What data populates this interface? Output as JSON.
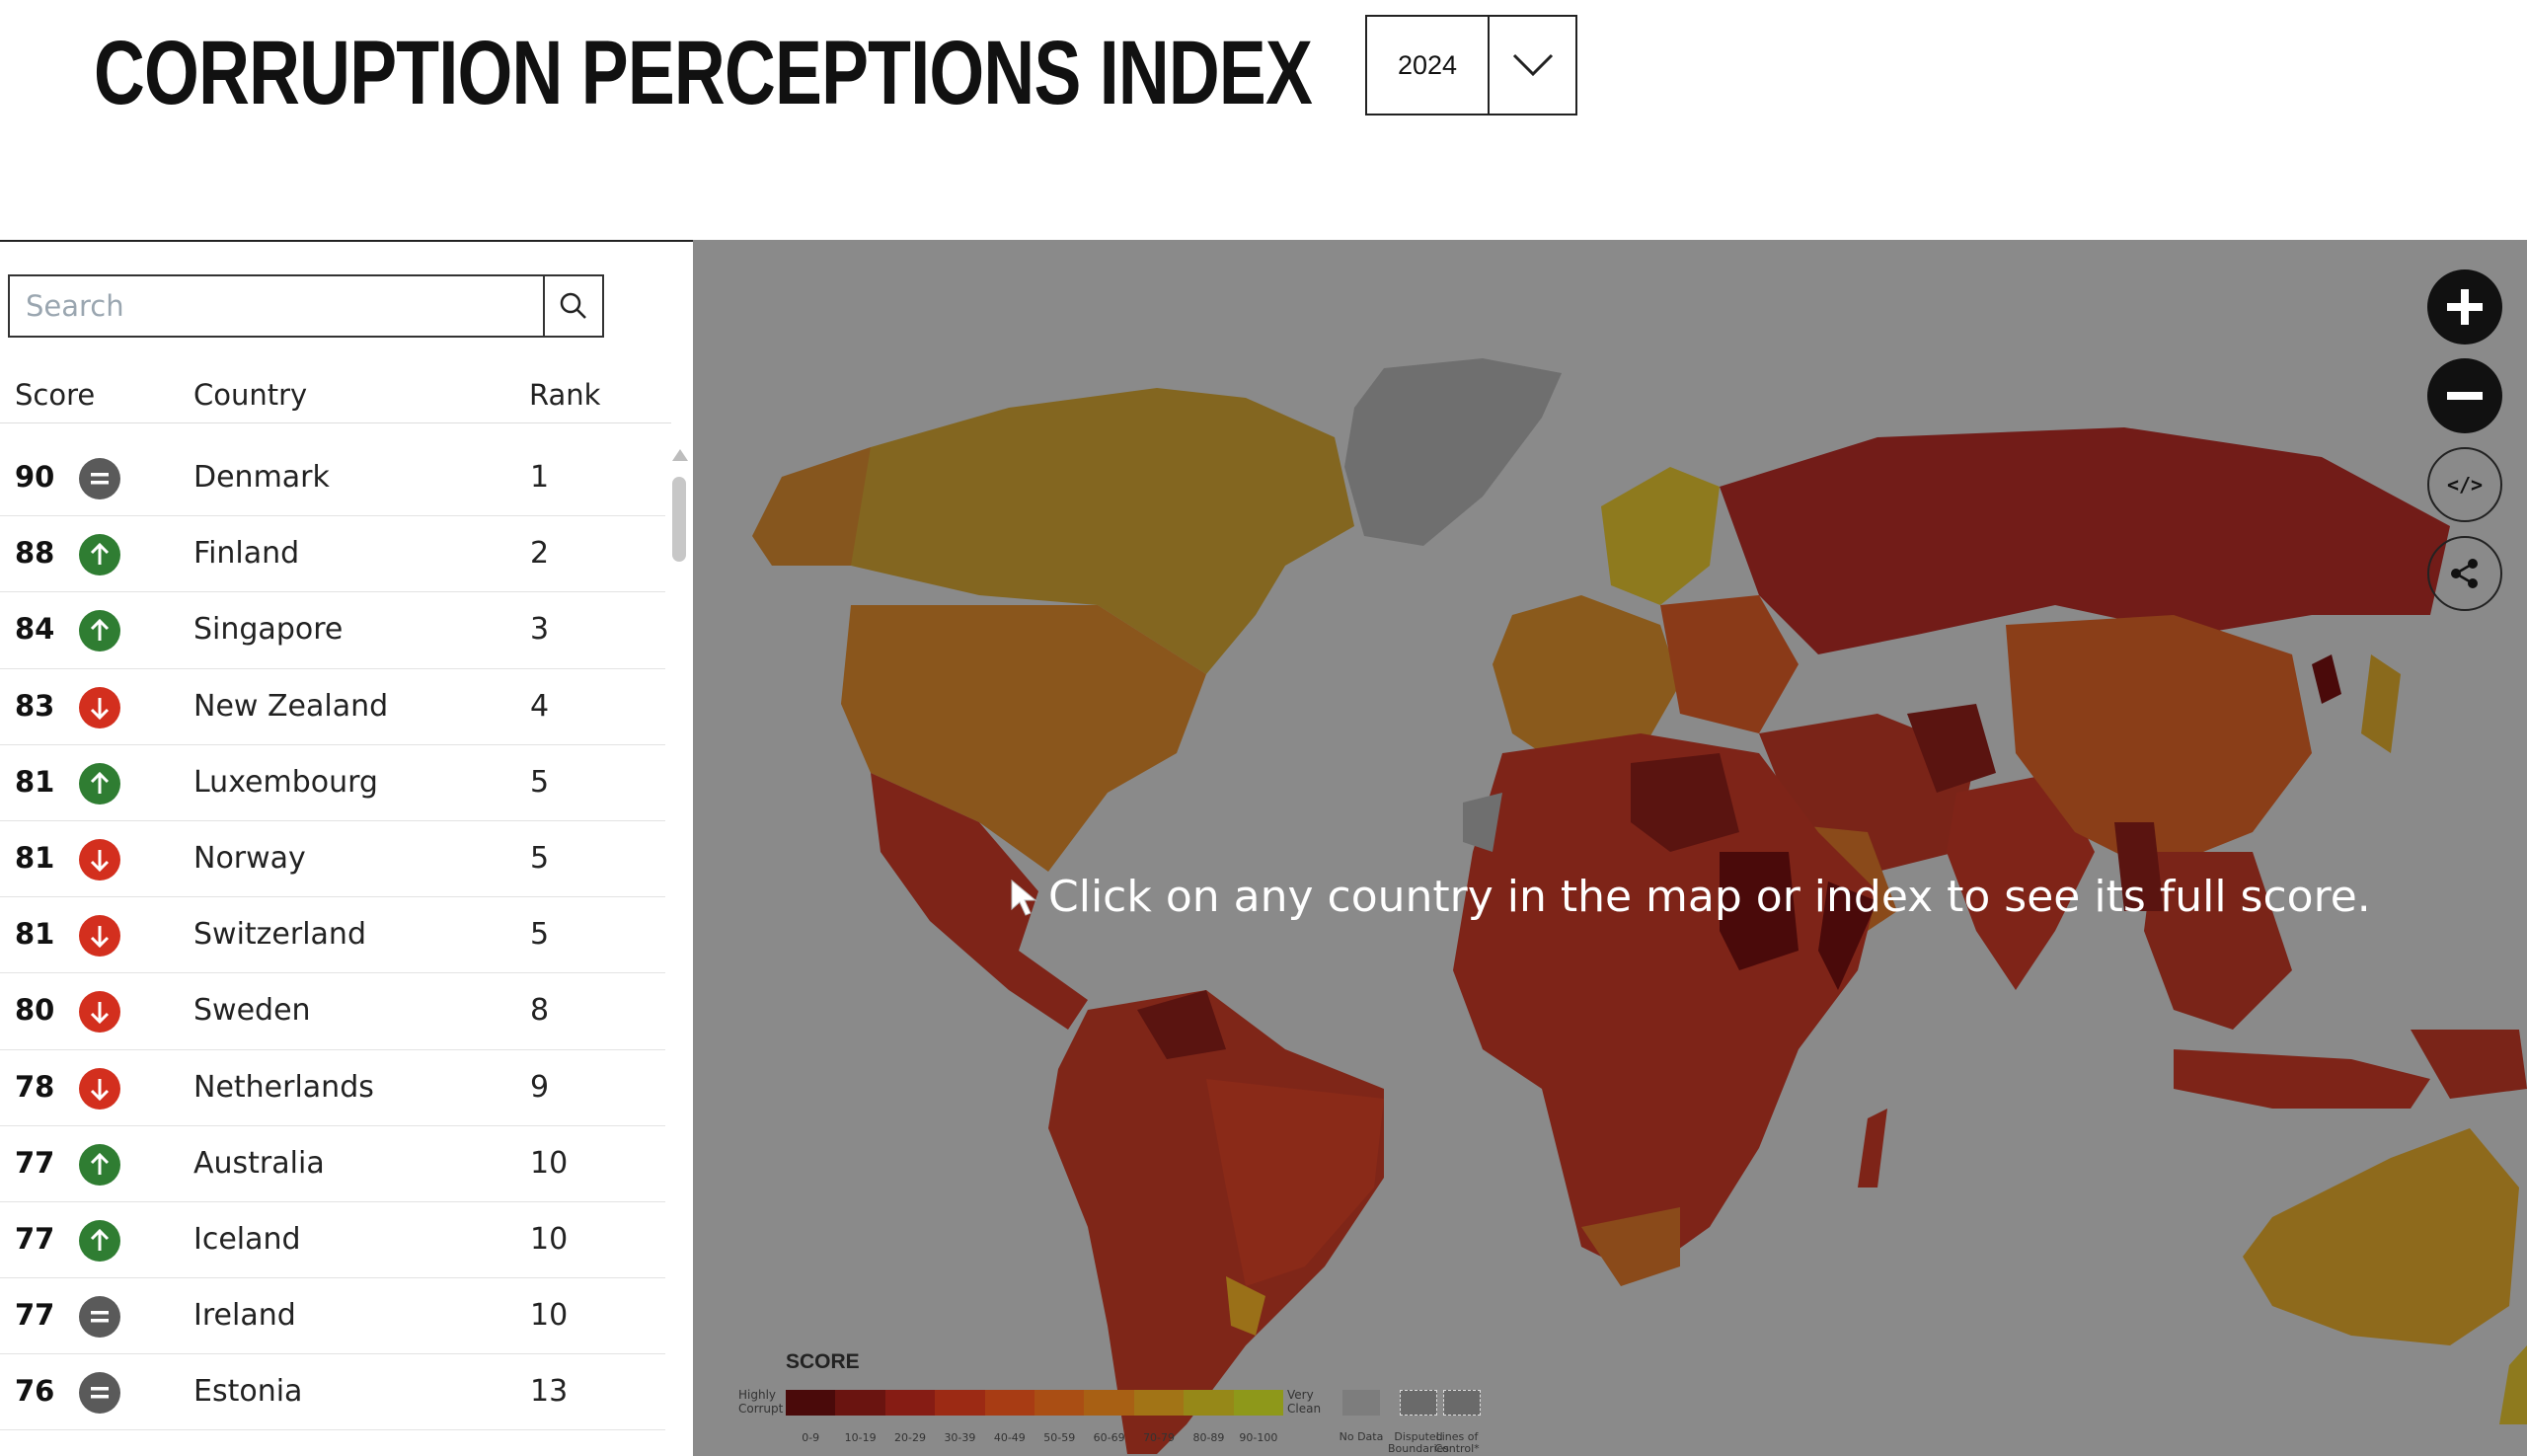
{
  "header": {
    "title": "CORRUPTION PERCEPTIONS INDEX",
    "year_selected": "2024"
  },
  "search": {
    "placeholder": "Search",
    "value": ""
  },
  "table": {
    "columns": {
      "score": "Score",
      "country": "Country",
      "rank": "Rank"
    },
    "rows": [
      {
        "score": "90",
        "trend": "same",
        "country": "Denmark",
        "rank": "1"
      },
      {
        "score": "88",
        "trend": "up",
        "country": "Finland",
        "rank": "2"
      },
      {
        "score": "84",
        "trend": "up",
        "country": "Singapore",
        "rank": "3"
      },
      {
        "score": "83",
        "trend": "down",
        "country": "New Zealand",
        "rank": "4"
      },
      {
        "score": "81",
        "trend": "up",
        "country": "Luxembourg",
        "rank": "5"
      },
      {
        "score": "81",
        "trend": "down",
        "country": "Norway",
        "rank": "5"
      },
      {
        "score": "81",
        "trend": "down",
        "country": "Switzerland",
        "rank": "5"
      },
      {
        "score": "80",
        "trend": "down",
        "country": "Sweden",
        "rank": "8"
      },
      {
        "score": "78",
        "trend": "down",
        "country": "Netherlands",
        "rank": "9"
      },
      {
        "score": "77",
        "trend": "up",
        "country": "Australia",
        "rank": "10"
      },
      {
        "score": "77",
        "trend": "up",
        "country": "Iceland",
        "rank": "10"
      },
      {
        "score": "77",
        "trend": "same",
        "country": "Ireland",
        "rank": "10"
      },
      {
        "score": "76",
        "trend": "same",
        "country": "Estonia",
        "rank": "13"
      }
    ]
  },
  "map": {
    "message": "Click on any country in the map or index to see its full score.",
    "overlay_color": "#8a8a8a",
    "controls": [
      "zoom-in-icon",
      "zoom-out-icon",
      "embed-code-icon",
      "share-icon"
    ],
    "embed_label": "</>"
  },
  "legend": {
    "title": "SCORE",
    "low_label": "Highly Corrupt",
    "high_label": "Very Clean",
    "ranges": [
      "0-9",
      "10-19",
      "20-29",
      "30-39",
      "40-49",
      "50-59",
      "60-69",
      "70-79",
      "80-89",
      "90-100"
    ],
    "colors": [
      "#4a0a0a",
      "#6a1410",
      "#861c14",
      "#9c2a14",
      "#a83c14",
      "#aa4e14",
      "#a86014",
      "#a27416",
      "#968818",
      "#8e981a"
    ],
    "no_data_label": "No Data",
    "disputed_label": "Disputed Boundaries*",
    "lines_label": "Lines of Control*"
  },
  "colors": {
    "trend_up": "#2f7d32",
    "trend_down": "#d32f1e",
    "trend_same": "#5a5a5a"
  }
}
